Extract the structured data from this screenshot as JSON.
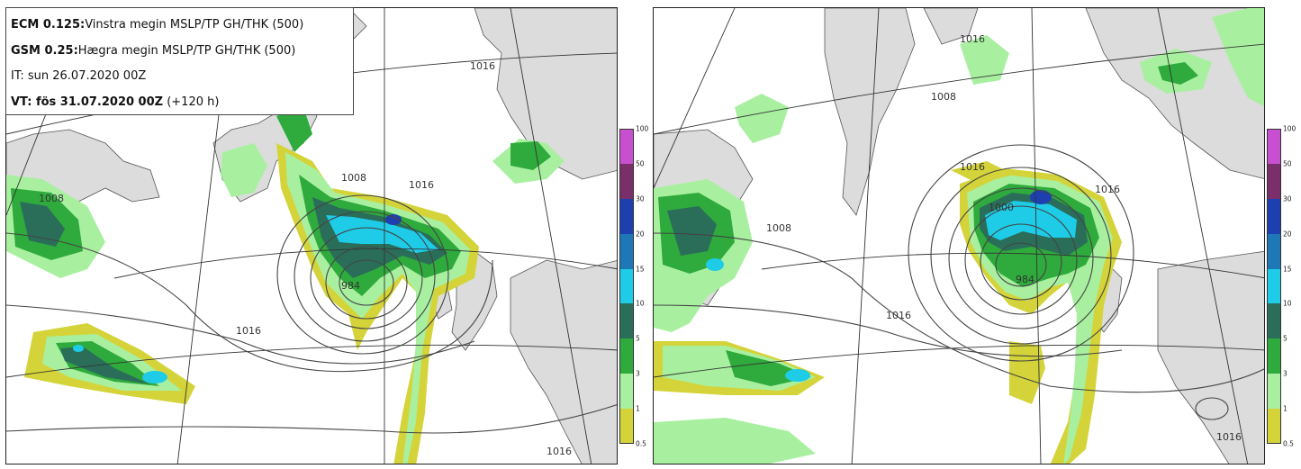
{
  "info": {
    "ecm_label": "ECM 0.125:",
    "ecm_text": "Vinstra megin MSLP/TP GH/THK (500)",
    "gsm_label": "GSM 0.25:",
    "gsm_text": "Hægra megin MSLP/TP GH/THK (500)",
    "it_text": "IT: sun 26.07.2020 00Z",
    "vt_label": "VT: fös 31.07.2020 00Z",
    "vt_lead": "(+120 h)"
  },
  "colorbar": {
    "labels": [
      "100",
      "50",
      "30",
      "20",
      "15",
      "10",
      "5",
      "3",
      "1",
      "0.5"
    ],
    "colors": [
      "#c850d0",
      "#7a2f6a",
      "#1e3fb0",
      "#1e78b8",
      "#1ecce8",
      "#2a6e5a",
      "#2faa3c",
      "#a8f0a0",
      "#d4d43a"
    ]
  },
  "left_map": {
    "isobar_labels": [
      "1016",
      "1008",
      "1016",
      "1008",
      "1016",
      "1016",
      "984"
    ]
  },
  "right_map": {
    "isobar_labels": [
      "1016",
      "1008",
      "1008",
      "1016",
      "1016",
      "1000",
      "984",
      "1016",
      "1016"
    ]
  }
}
